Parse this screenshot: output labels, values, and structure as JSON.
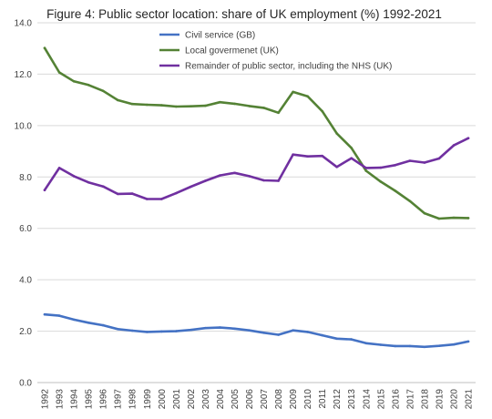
{
  "chart_data": {
    "type": "line",
    "title": "Figure 4: Public sector location: share of UK employment (%) 1992-2021",
    "xlabel": "",
    "ylabel": "",
    "ylim": [
      0,
      14
    ],
    "yticks": [
      "0.0",
      "2.0",
      "4.0",
      "6.0",
      "8.0",
      "10.0",
      "12.0",
      "14.0"
    ],
    "grid": "horizontal",
    "legend": "top-center",
    "categories": [
      "1992",
      "1993",
      "1994",
      "1995",
      "1996",
      "1997",
      "1998",
      "1999",
      "2000",
      "2001",
      "2002",
      "2003",
      "2004",
      "2005",
      "2006",
      "2007",
      "2008",
      "2009",
      "2010",
      "2011",
      "2012",
      "2013",
      "2014",
      "2015",
      "2016",
      "2017",
      "2018",
      "2019",
      "2020",
      "2021"
    ],
    "series": [
      {
        "name": "Civil service (GB)",
        "color": "#4472C4",
        "values": [
          2.65,
          2.6,
          2.45,
          2.33,
          2.23,
          2.08,
          2.02,
          1.97,
          1.99,
          2.0,
          2.05,
          2.12,
          2.14,
          2.1,
          2.03,
          1.94,
          1.86,
          2.03,
          1.97,
          1.84,
          1.71,
          1.68,
          1.53,
          1.47,
          1.42,
          1.42,
          1.39,
          1.43,
          1.48,
          1.6
        ]
      },
      {
        "name": "Local govermenet (UK)",
        "color": "#548235",
        "values": [
          13.02,
          12.07,
          11.72,
          11.58,
          11.35,
          10.99,
          10.84,
          10.81,
          10.79,
          10.74,
          10.75,
          10.77,
          10.91,
          10.85,
          10.76,
          10.69,
          10.5,
          11.31,
          11.14,
          10.56,
          9.69,
          9.13,
          8.24,
          7.82,
          7.46,
          7.06,
          6.59,
          6.38,
          6.41,
          6.4
        ]
      },
      {
        "name": "Remainder of public sector, including the NHS (UK)",
        "color": "#7030A0",
        "values": [
          7.49,
          8.35,
          8.03,
          7.79,
          7.63,
          7.34,
          7.35,
          7.14,
          7.14,
          7.37,
          7.62,
          7.85,
          8.06,
          8.16,
          8.03,
          7.87,
          7.85,
          8.87,
          8.8,
          8.82,
          8.39,
          8.73,
          8.35,
          8.36,
          8.46,
          8.63,
          8.56,
          8.72,
          9.23,
          9.51
        ]
      }
    ]
  }
}
